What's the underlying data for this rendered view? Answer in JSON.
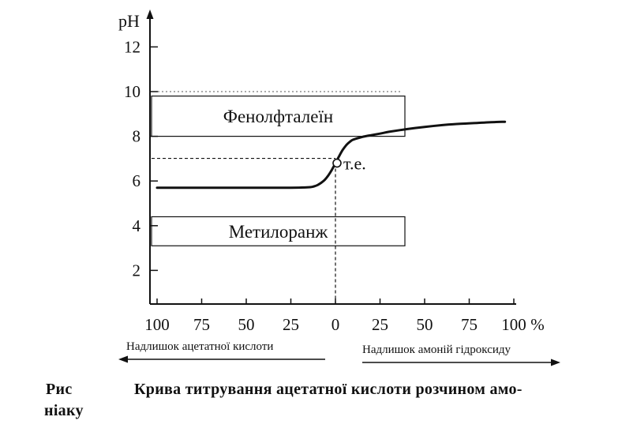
{
  "chart_data": {
    "type": "line",
    "ylabel": "pH",
    "y_ticks": [
      2,
      4,
      6,
      8,
      10,
      12
    ],
    "ylim": [
      0,
      13.5
    ],
    "x_ticks": [
      "100",
      "75",
      "50",
      "25",
      "0",
      "25",
      "50",
      "75",
      "100"
    ],
    "x_unit": "%",
    "x": [
      -100,
      -75,
      -50,
      -25,
      -15,
      -12,
      -10,
      -8,
      -6,
      -4,
      -2,
      0,
      2,
      4,
      6,
      8,
      10,
      15,
      20,
      25,
      30,
      40,
      50,
      60,
      70,
      80,
      90,
      95
    ],
    "series": [
      {
        "values": [
          5.7,
          5.7,
          5.7,
          5.7,
          5.72,
          5.76,
          5.82,
          5.92,
          6.05,
          6.25,
          6.5,
          6.8,
          7.1,
          7.38,
          7.6,
          7.75,
          7.85,
          7.97,
          8.05,
          8.12,
          8.2,
          8.32,
          8.42,
          8.5,
          8.56,
          8.6,
          8.64,
          8.65
        ]
      }
    ],
    "indicator_ranges": [
      {
        "name": "Фенолфталеїн",
        "y_from": 8.0,
        "y_to": 9.8
      },
      {
        "name": "Метилоранж",
        "y_from": 3.1,
        "y_to": 4.4
      }
    ],
    "equivalence_point": {
      "label": "т.е.",
      "x": 0,
      "y": 6.8
    },
    "bottom_notes": {
      "left": "Надлишок ацетатної кислоти",
      "right": "Надлишок амоній гідроксиду"
    },
    "grid": false
  },
  "caption": {
    "prefix": "Рис",
    "text": "Крива титрування ацетатної кислоти розчином амо-",
    "continuation": "ніаку"
  }
}
